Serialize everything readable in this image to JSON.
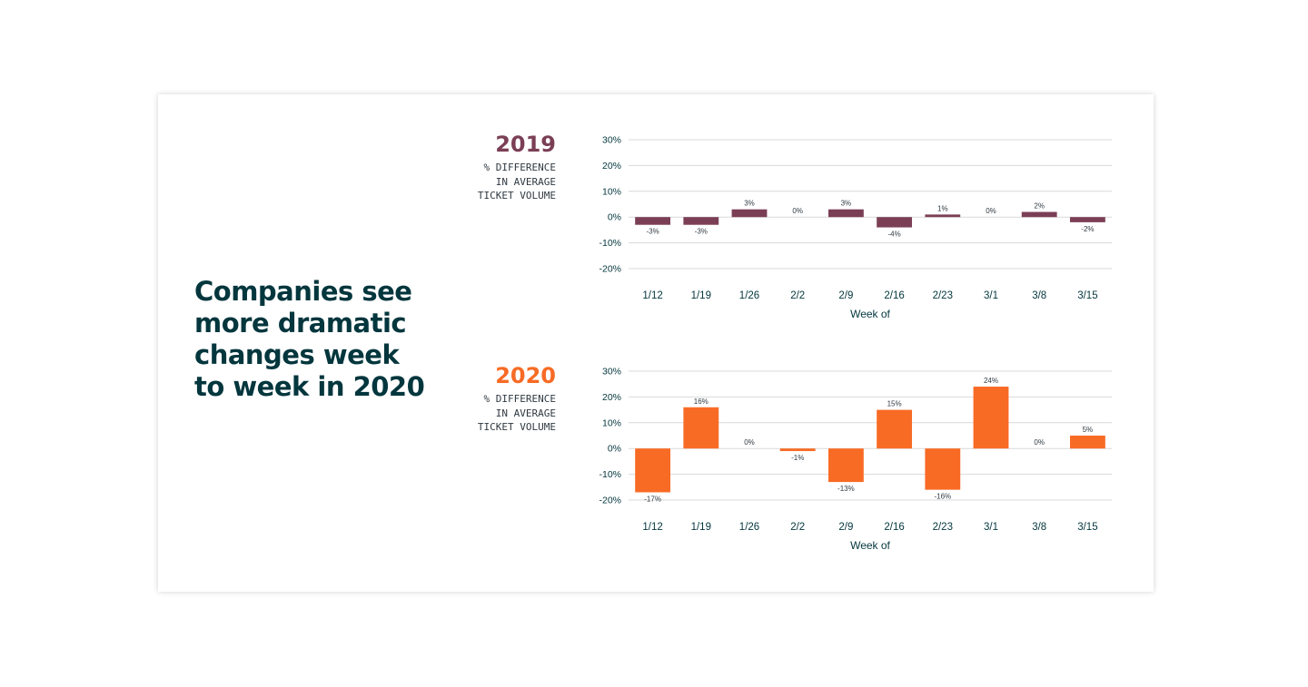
{
  "headline": "Companies see more dramatic changes week to week in 2020",
  "colors": {
    "y2019": "#7b3f55",
    "y2020": "#f86b25",
    "text": "#03363d",
    "grid": "#d9d9d9"
  },
  "chart_data": [
    {
      "type": "bar",
      "title": "2019",
      "subtitle": "% DIFFERENCE\nIN AVERAGE\nTICKET VOLUME",
      "xlabel": "Week of",
      "ylabel": "",
      "categories": [
        "1/12",
        "1/19",
        "1/26",
        "2/2",
        "2/9",
        "2/16",
        "2/23",
        "3/1",
        "3/8",
        "3/15"
      ],
      "values": [
        -3,
        -3,
        3,
        0,
        3,
        -4,
        1,
        0,
        2,
        -2
      ],
      "data_labels": [
        "-3%",
        "-3%",
        "3%",
        "0%",
        "3%",
        "-4%",
        "1%",
        "0%",
        "2%",
        "-2%"
      ],
      "ylim": [
        -20,
        30
      ],
      "yticks": [
        30,
        20,
        10,
        0,
        -10,
        -20
      ],
      "ytick_labels": [
        "30%",
        "20%",
        "10%",
        "0%",
        "-10%",
        "-20%"
      ],
      "grid": true,
      "legend": "none"
    },
    {
      "type": "bar",
      "title": "2020",
      "subtitle": "% DIFFERENCE\nIN AVERAGE\nTICKET VOLUME",
      "xlabel": "Week of",
      "ylabel": "",
      "categories": [
        "1/12",
        "1/19",
        "1/26",
        "2/2",
        "2/9",
        "2/16",
        "2/23",
        "3/1",
        "3/8",
        "3/15"
      ],
      "values": [
        -17,
        16,
        0,
        -1,
        -13,
        15,
        -16,
        24,
        0,
        5
      ],
      "data_labels": [
        "-17%",
        "16%",
        "0%",
        "-1%",
        "-13%",
        "15%",
        "-16%",
        "24%",
        "0%",
        "5%"
      ],
      "ylim": [
        -20,
        30
      ],
      "yticks": [
        30,
        20,
        10,
        0,
        -10,
        -20
      ],
      "ytick_labels": [
        "30%",
        "20%",
        "10%",
        "0%",
        "-10%",
        "-20%"
      ],
      "grid": true,
      "legend": "none"
    }
  ]
}
